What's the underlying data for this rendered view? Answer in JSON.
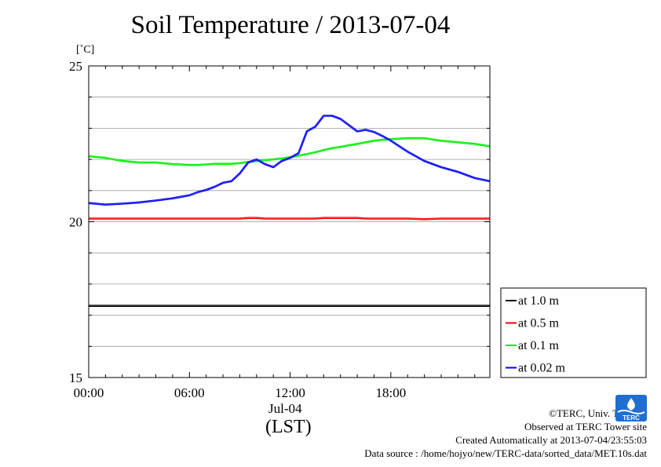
{
  "chart_data": {
    "type": "line",
    "title": "Soil Temperature / 2013-07-04",
    "ylabel": "[˚C]",
    "xlabel": "(LST)",
    "date_label": "Jul-04",
    "xlim": [
      0,
      23.9
    ],
    "ylim": [
      15,
      25
    ],
    "x_ticks": [
      {
        "value": 0,
        "label": "00:00"
      },
      {
        "value": 6,
        "label": "06:00"
      },
      {
        "value": 12,
        "label": "12:00"
      },
      {
        "value": 18,
        "label": "18:00"
      }
    ],
    "y_ticks": [
      {
        "value": 15,
        "label": "15"
      },
      {
        "value": 20,
        "label": "20"
      },
      {
        "value": 25,
        "label": "25"
      }
    ],
    "grid": true,
    "legend_position": "right-bottom",
    "x": [
      0,
      1,
      2,
      3,
      4,
      5,
      6,
      6.5,
      7,
      7.5,
      8,
      8.5,
      9,
      9.5,
      10,
      10.5,
      11,
      11.5,
      12,
      12.5,
      13,
      13.5,
      14,
      14.5,
      15,
      15.5,
      16,
      16.5,
      17,
      17.5,
      18,
      19,
      20,
      21,
      22,
      23,
      23.9
    ],
    "series": [
      {
        "name": "at 1.0 m",
        "color": "#000000",
        "values": [
          17.3,
          17.3,
          17.3,
          17.3,
          17.3,
          17.3,
          17.3,
          17.3,
          17.3,
          17.3,
          17.3,
          17.3,
          17.3,
          17.3,
          17.3,
          17.3,
          17.3,
          17.3,
          17.3,
          17.3,
          17.3,
          17.3,
          17.3,
          17.3,
          17.3,
          17.3,
          17.3,
          17.3,
          17.3,
          17.3,
          17.3,
          17.3,
          17.3,
          17.3,
          17.3,
          17.3,
          17.3
        ]
      },
      {
        "name": "at 0.5 m",
        "color": "#ff0000",
        "values": [
          20.1,
          20.1,
          20.1,
          20.1,
          20.1,
          20.1,
          20.1,
          20.1,
          20.1,
          20.1,
          20.1,
          20.1,
          20.1,
          20.12,
          20.12,
          20.1,
          20.1,
          20.1,
          20.1,
          20.1,
          20.1,
          20.1,
          20.12,
          20.12,
          20.12,
          20.12,
          20.12,
          20.1,
          20.1,
          20.1,
          20.1,
          20.1,
          20.08,
          20.1,
          20.1,
          20.1,
          20.1
        ]
      },
      {
        "name": "at 0.1 m",
        "color": "#00ee00",
        "values": [
          22.1,
          22.05,
          21.95,
          21.9,
          21.9,
          21.85,
          21.82,
          21.82,
          21.84,
          21.86,
          21.86,
          21.86,
          21.88,
          21.92,
          21.95,
          21.98,
          22.0,
          22.03,
          22.07,
          22.12,
          22.17,
          22.23,
          22.3,
          22.36,
          22.4,
          22.45,
          22.5,
          22.55,
          22.6,
          22.63,
          22.65,
          22.68,
          22.68,
          22.6,
          22.55,
          22.5,
          22.42
        ]
      },
      {
        "name": "at 0.02 m",
        "color": "#0000ff",
        "values": [
          20.6,
          20.55,
          20.58,
          20.62,
          20.68,
          20.75,
          20.85,
          20.95,
          21.02,
          21.12,
          21.25,
          21.3,
          21.55,
          21.9,
          22.0,
          21.85,
          21.75,
          21.95,
          22.05,
          22.2,
          22.9,
          23.05,
          23.4,
          23.4,
          23.3,
          23.1,
          22.9,
          22.95,
          22.88,
          22.75,
          22.6,
          22.25,
          21.95,
          21.75,
          21.6,
          21.4,
          21.3
        ]
      }
    ]
  },
  "footer": {
    "copyright": "©TERC, Univ. Tsukuba",
    "observed": "Observed at TERC Tower site",
    "created": "Created Automatically at 2013-07-04/23:55:03",
    "source": "Data source : /home/hojyo/new/TERC-data/sorted_data/MET.10s.dat"
  },
  "logo_text": "TERC",
  "colors": {
    "gridline": "#9a9a9a",
    "logo": "#1e6fd1"
  }
}
